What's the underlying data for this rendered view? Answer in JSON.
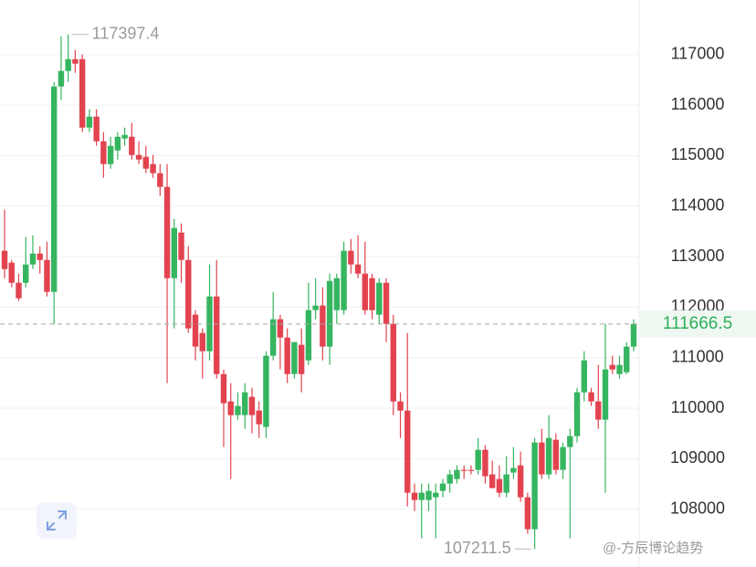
{
  "chart_data": {
    "type": "candlestick",
    "up_color": "#36b560",
    "down_color": "#e2434f",
    "grid": true,
    "ylim": [
      107000,
      118080
    ],
    "yticks": [
      108000,
      109000,
      110000,
      111000,
      112000,
      113000,
      114000,
      115000,
      116000,
      117000
    ],
    "open": [
      113115,
      112880,
      112482,
      112482,
      112844,
      113060,
      112934,
      112302,
      116367,
      116675,
      116909,
      116909,
      115554,
      115771,
      115283,
      114831,
      115102,
      115337,
      115373,
      115012,
      114976,
      114831,
      114651,
      114380,
      112573,
      113476,
      112934,
      111850,
      111488,
      111127,
      112211,
      110675,
      110133,
      109862,
      109862,
      110224,
      109952,
      109627,
      111037,
      111760,
      111398,
      110675,
      111254,
      110946,
      111940,
      112031,
      111218,
      111940,
      111940,
      113115,
      112844,
      112663,
      112573,
      111850,
      112482,
      111669,
      110133,
      109952,
      108326,
      108182,
      108182,
      108236,
      108362,
      108507,
      108597,
      108778,
      108778,
      108778,
      109175,
      108688,
      108597,
      108326,
      108724,
      108868,
      108236,
      107603,
      109320,
      108688,
      109374,
      108778,
      109230,
      109446,
      110314,
      110314,
      110133,
      109772,
      110856,
      110675,
      110711,
      111218
    ],
    "high": [
      113928,
      112934,
      112663,
      113386,
      113422,
      113205,
      113295,
      116458,
      117361,
      117397.4,
      117090,
      117000,
      115916,
      115916,
      115464,
      115373,
      115464,
      115554,
      115645,
      115283,
      115193,
      115012,
      114831,
      114831,
      113747,
      113657,
      113205,
      111940,
      111579,
      112844,
      112934,
      110766,
      110495,
      110314,
      110495,
      110404,
      110133,
      111127,
      112302,
      111850,
      111579,
      111308,
      111579,
      112482,
      112573,
      112392,
      112663,
      112663,
      113295,
      113350,
      113422,
      113295,
      112663,
      112573,
      112573,
      111850,
      110314,
      111488,
      108507,
      108507,
      108507,
      108507,
      108597,
      108778,
      108868,
      108868,
      108868,
      109410,
      109266,
      108959,
      108868,
      109049,
      109230,
      109139,
      108326,
      109410,
      109591,
      109862,
      109501,
      109320,
      109591,
      110404,
      111127,
      110404,
      110856,
      111669,
      111037,
      111037,
      111308,
      111760
    ],
    "low": [
      112573,
      112392,
      112121,
      112392,
      112753,
      112663,
      112211,
      111669,
      116096,
      116458,
      116638,
      115464,
      115464,
      115193,
      114560,
      114741,
      114922,
      115193,
      114922,
      114831,
      114651,
      114560,
      114199,
      110495,
      111579,
      112482,
      111488,
      110946,
      110585,
      110946,
      110585,
      109230,
      108597,
      109772,
      109591,
      109501,
      109410,
      109410,
      110946,
      110766,
      110495,
      110585,
      110314,
      110856,
      111760,
      110946,
      110856,
      111669,
      111850,
      112663,
      112573,
      111850,
      111760,
      111669,
      111308,
      109862,
      109410,
      108055,
      107965,
      107423,
      107965,
      107423,
      108236,
      108326,
      108507,
      108597,
      108688,
      108688,
      108507,
      108417,
      108236,
      108236,
      108597,
      108145,
      107513,
      107211.5,
      108597,
      108597,
      108688,
      108597,
      107423,
      109320,
      110133,
      110043,
      109591,
      108326,
      110675,
      110585,
      110675,
      111127
    ],
    "close": [
      112753,
      112482,
      112175,
      112844,
      113060,
      112934,
      112302,
      116367,
      116675,
      116909,
      116819,
      115554,
      115771,
      115283,
      114831,
      115193,
      115373,
      115410,
      115012,
      114922,
      114741,
      114651,
      114380,
      112573,
      113567,
      112934,
      111579,
      111218,
      111127,
      112211,
      110675,
      110097,
      109862,
      110043,
      110314,
      109862,
      109681,
      111037,
      111760,
      111398,
      110675,
      111308,
      110675,
      111940,
      112031,
      111218,
      112518,
      112573,
      113115,
      112844,
      112663,
      111940,
      111940,
      112482,
      111669,
      110133,
      109952,
      108326,
      108182,
      108326,
      108362,
      108326,
      108507,
      108688,
      108778,
      108760,
      108760,
      109175,
      108651,
      108417,
      108326,
      108688,
      108814,
      108236,
      107603,
      109320,
      108688,
      109410,
      108778,
      109230,
      109446,
      110314,
      110946,
      110133,
      109772,
      110766,
      110766,
      110856,
      111218,
      111666.5
    ],
    "watermark": "@-方辰博论趋势"
  }
}
